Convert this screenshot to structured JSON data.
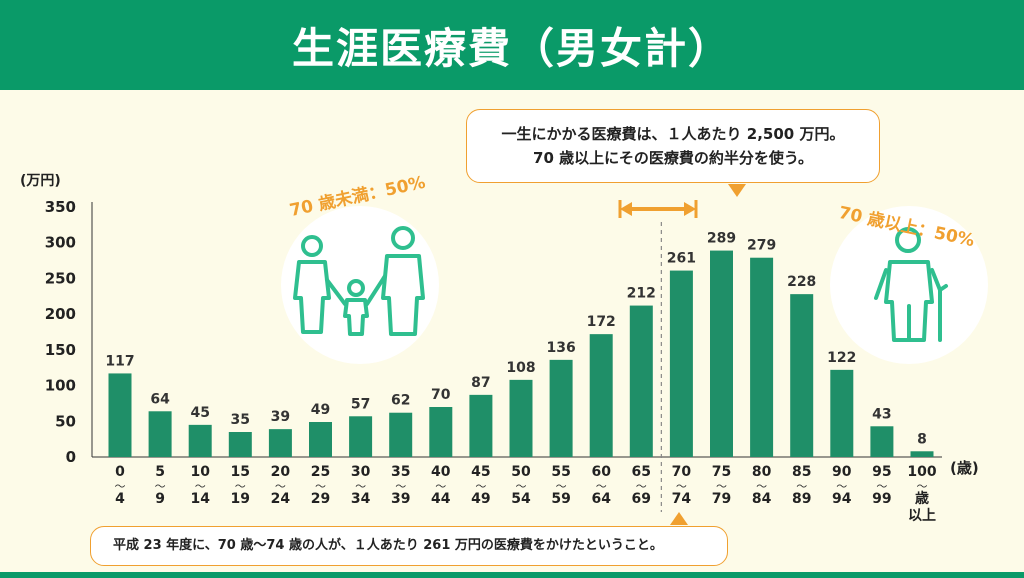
{
  "title": "生涯医療費（男女計）",
  "callout_top": {
    "line1": "一生にかかる医療費は、１人あたり 2,500 万円。",
    "line2": "70 歳以上にその医療費の約半分を使う。"
  },
  "callout_bottom": "平成 23 年度に、70 歳〜74 歳の人が、１人あたり 261 万円の医療費をかけたということ。",
  "share_under70": "70 歳未満：50%",
  "share_over70": "70 歳以上：50%",
  "colors": {
    "bar": "#1f8f68",
    "accent": "#f0a030",
    "header": "#0a9a68",
    "figure": "#2fbf8f"
  },
  "chart_data": {
    "type": "bar",
    "title": "生涯医療費（男女計）",
    "ylabel": "(万円)",
    "xlabel": "(歳)",
    "ylim": [
      0,
      350
    ],
    "yticks": [
      0,
      50,
      100,
      150,
      200,
      250,
      300,
      350
    ],
    "categories": [
      {
        "top": "0",
        "bottom": "4"
      },
      {
        "top": "5",
        "bottom": "9"
      },
      {
        "top": "10",
        "bottom": "14"
      },
      {
        "top": "15",
        "bottom": "19"
      },
      {
        "top": "20",
        "bottom": "24"
      },
      {
        "top": "25",
        "bottom": "29"
      },
      {
        "top": "30",
        "bottom": "34"
      },
      {
        "top": "35",
        "bottom": "39"
      },
      {
        "top": "40",
        "bottom": "44"
      },
      {
        "top": "45",
        "bottom": "49"
      },
      {
        "top": "50",
        "bottom": "54"
      },
      {
        "top": "55",
        "bottom": "59"
      },
      {
        "top": "60",
        "bottom": "64"
      },
      {
        "top": "65",
        "bottom": "69"
      },
      {
        "top": "70",
        "bottom": "74"
      },
      {
        "top": "75",
        "bottom": "79"
      },
      {
        "top": "80",
        "bottom": "84"
      },
      {
        "top": "85",
        "bottom": "89"
      },
      {
        "top": "90",
        "bottom": "94"
      },
      {
        "top": "95",
        "bottom": "99"
      },
      {
        "top": "100",
        "bottom": "歳",
        "extra": "以上"
      }
    ],
    "values": [
      117,
      64,
      45,
      35,
      39,
      49,
      57,
      62,
      70,
      87,
      108,
      136,
      172,
      212,
      261,
      289,
      279,
      228,
      122,
      43,
      8
    ],
    "tilde": "〜",
    "grid": false,
    "divider_after_category": "65"
  }
}
